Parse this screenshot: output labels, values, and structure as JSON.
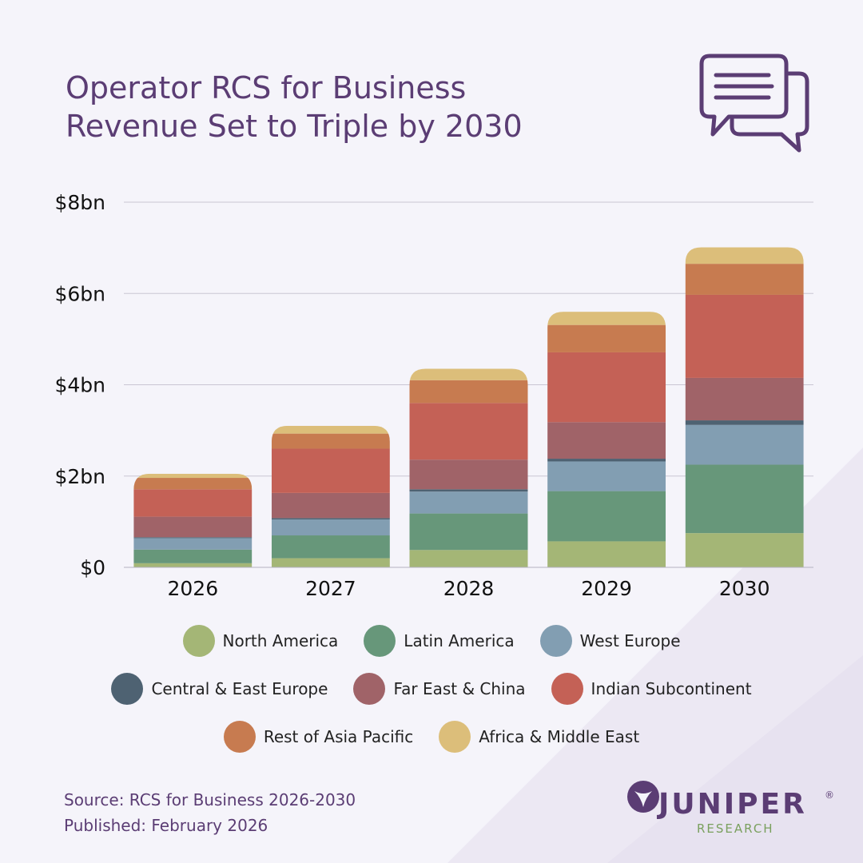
{
  "title": {
    "line1": "Operator RCS for Business",
    "line2": "Revenue Set to Triple by 2030"
  },
  "icon": "chat-bubbles-icon",
  "chart_data": {
    "type": "bar",
    "stacked": true,
    "categories": [
      "2026",
      "2027",
      "2028",
      "2029",
      "2030"
    ],
    "yticks": [
      "$0",
      "$2bn",
      "$4bn",
      "$6bn",
      "$8bn"
    ],
    "ylim": [
      0,
      8
    ],
    "grid": true,
    "legend_position": "bottom",
    "series": [
      {
        "name": "North America",
        "color": "#a4b676",
        "values": [
          0.09,
          0.2,
          0.38,
          0.57,
          0.75
        ]
      },
      {
        "name": "Latin America",
        "color": "#67977a",
        "values": [
          0.3,
          0.5,
          0.8,
          1.1,
          1.5
        ]
      },
      {
        "name": "West Europe",
        "color": "#829eb2",
        "values": [
          0.25,
          0.35,
          0.48,
          0.65,
          0.87
        ]
      },
      {
        "name": "Central & East Europe",
        "color": "#4e6272",
        "values": [
          0.02,
          0.03,
          0.05,
          0.06,
          0.1
        ]
      },
      {
        "name": "Far East & China",
        "color": "#a06368",
        "values": [
          0.45,
          0.55,
          0.65,
          0.8,
          0.93
        ]
      },
      {
        "name": "Indian Subcontinent",
        "color": "#c46156",
        "values": [
          0.6,
          0.97,
          1.24,
          1.53,
          1.82
        ]
      },
      {
        "name": "Rest of Asia Pacific",
        "color": "#c77b50",
        "values": [
          0.25,
          0.33,
          0.5,
          0.6,
          0.68
        ]
      },
      {
        "name": "Africa & Middle East",
        "color": "#dcbe7a",
        "values": [
          0.09,
          0.17,
          0.25,
          0.29,
          0.36
        ]
      }
    ]
  },
  "legend_rows": [
    [
      0,
      1,
      2
    ],
    [
      3,
      4,
      5
    ],
    [
      6,
      7
    ]
  ],
  "footer": {
    "source": "Source: RCS for Business 2026-2030",
    "published": "Published: February 2026"
  },
  "logo": {
    "name": "JUNIPER",
    "registered": "®",
    "sub": "RESEARCH"
  }
}
